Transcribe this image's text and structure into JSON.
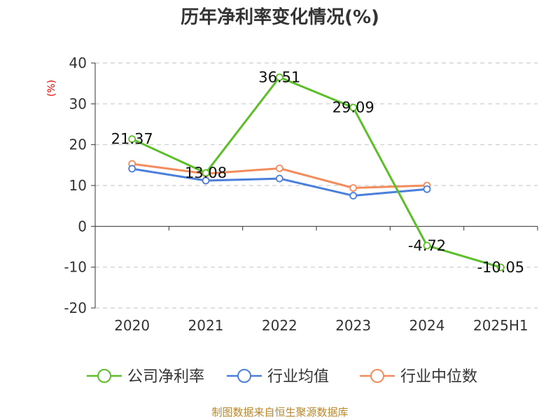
{
  "chart_data": {
    "type": "line",
    "title": "历年净利率变化情况(%)",
    "ylabel": "(%)",
    "xlabel": "",
    "categories": [
      "2020",
      "2021",
      "2022",
      "2023",
      "2024",
      "2025H1"
    ],
    "ylim": [
      -20,
      40
    ],
    "yticks": [
      -20,
      -10,
      0,
      10,
      20,
      30,
      40
    ],
    "grid": true,
    "legend_position": "bottom",
    "series": [
      {
        "name": "公司净利率",
        "color": "#5cbf2a",
        "values": [
          21.37,
          13.08,
          36.51,
          29.09,
          -4.72,
          -10.05
        ],
        "labels": [
          "21.37",
          "13.08",
          "36.51",
          "29.09",
          "-4.72",
          "-10.05"
        ]
      },
      {
        "name": "行业均值",
        "color": "#4a7fdc",
        "values": [
          14.1,
          11.2,
          11.7,
          7.5,
          9.1,
          null
        ]
      },
      {
        "name": "行业中位数",
        "color": "#f28c5c",
        "values": [
          15.3,
          12.9,
          14.2,
          9.4,
          10.0,
          null
        ]
      }
    ]
  },
  "footer": {
    "source": "制图数据来自恒生聚源数据库"
  }
}
